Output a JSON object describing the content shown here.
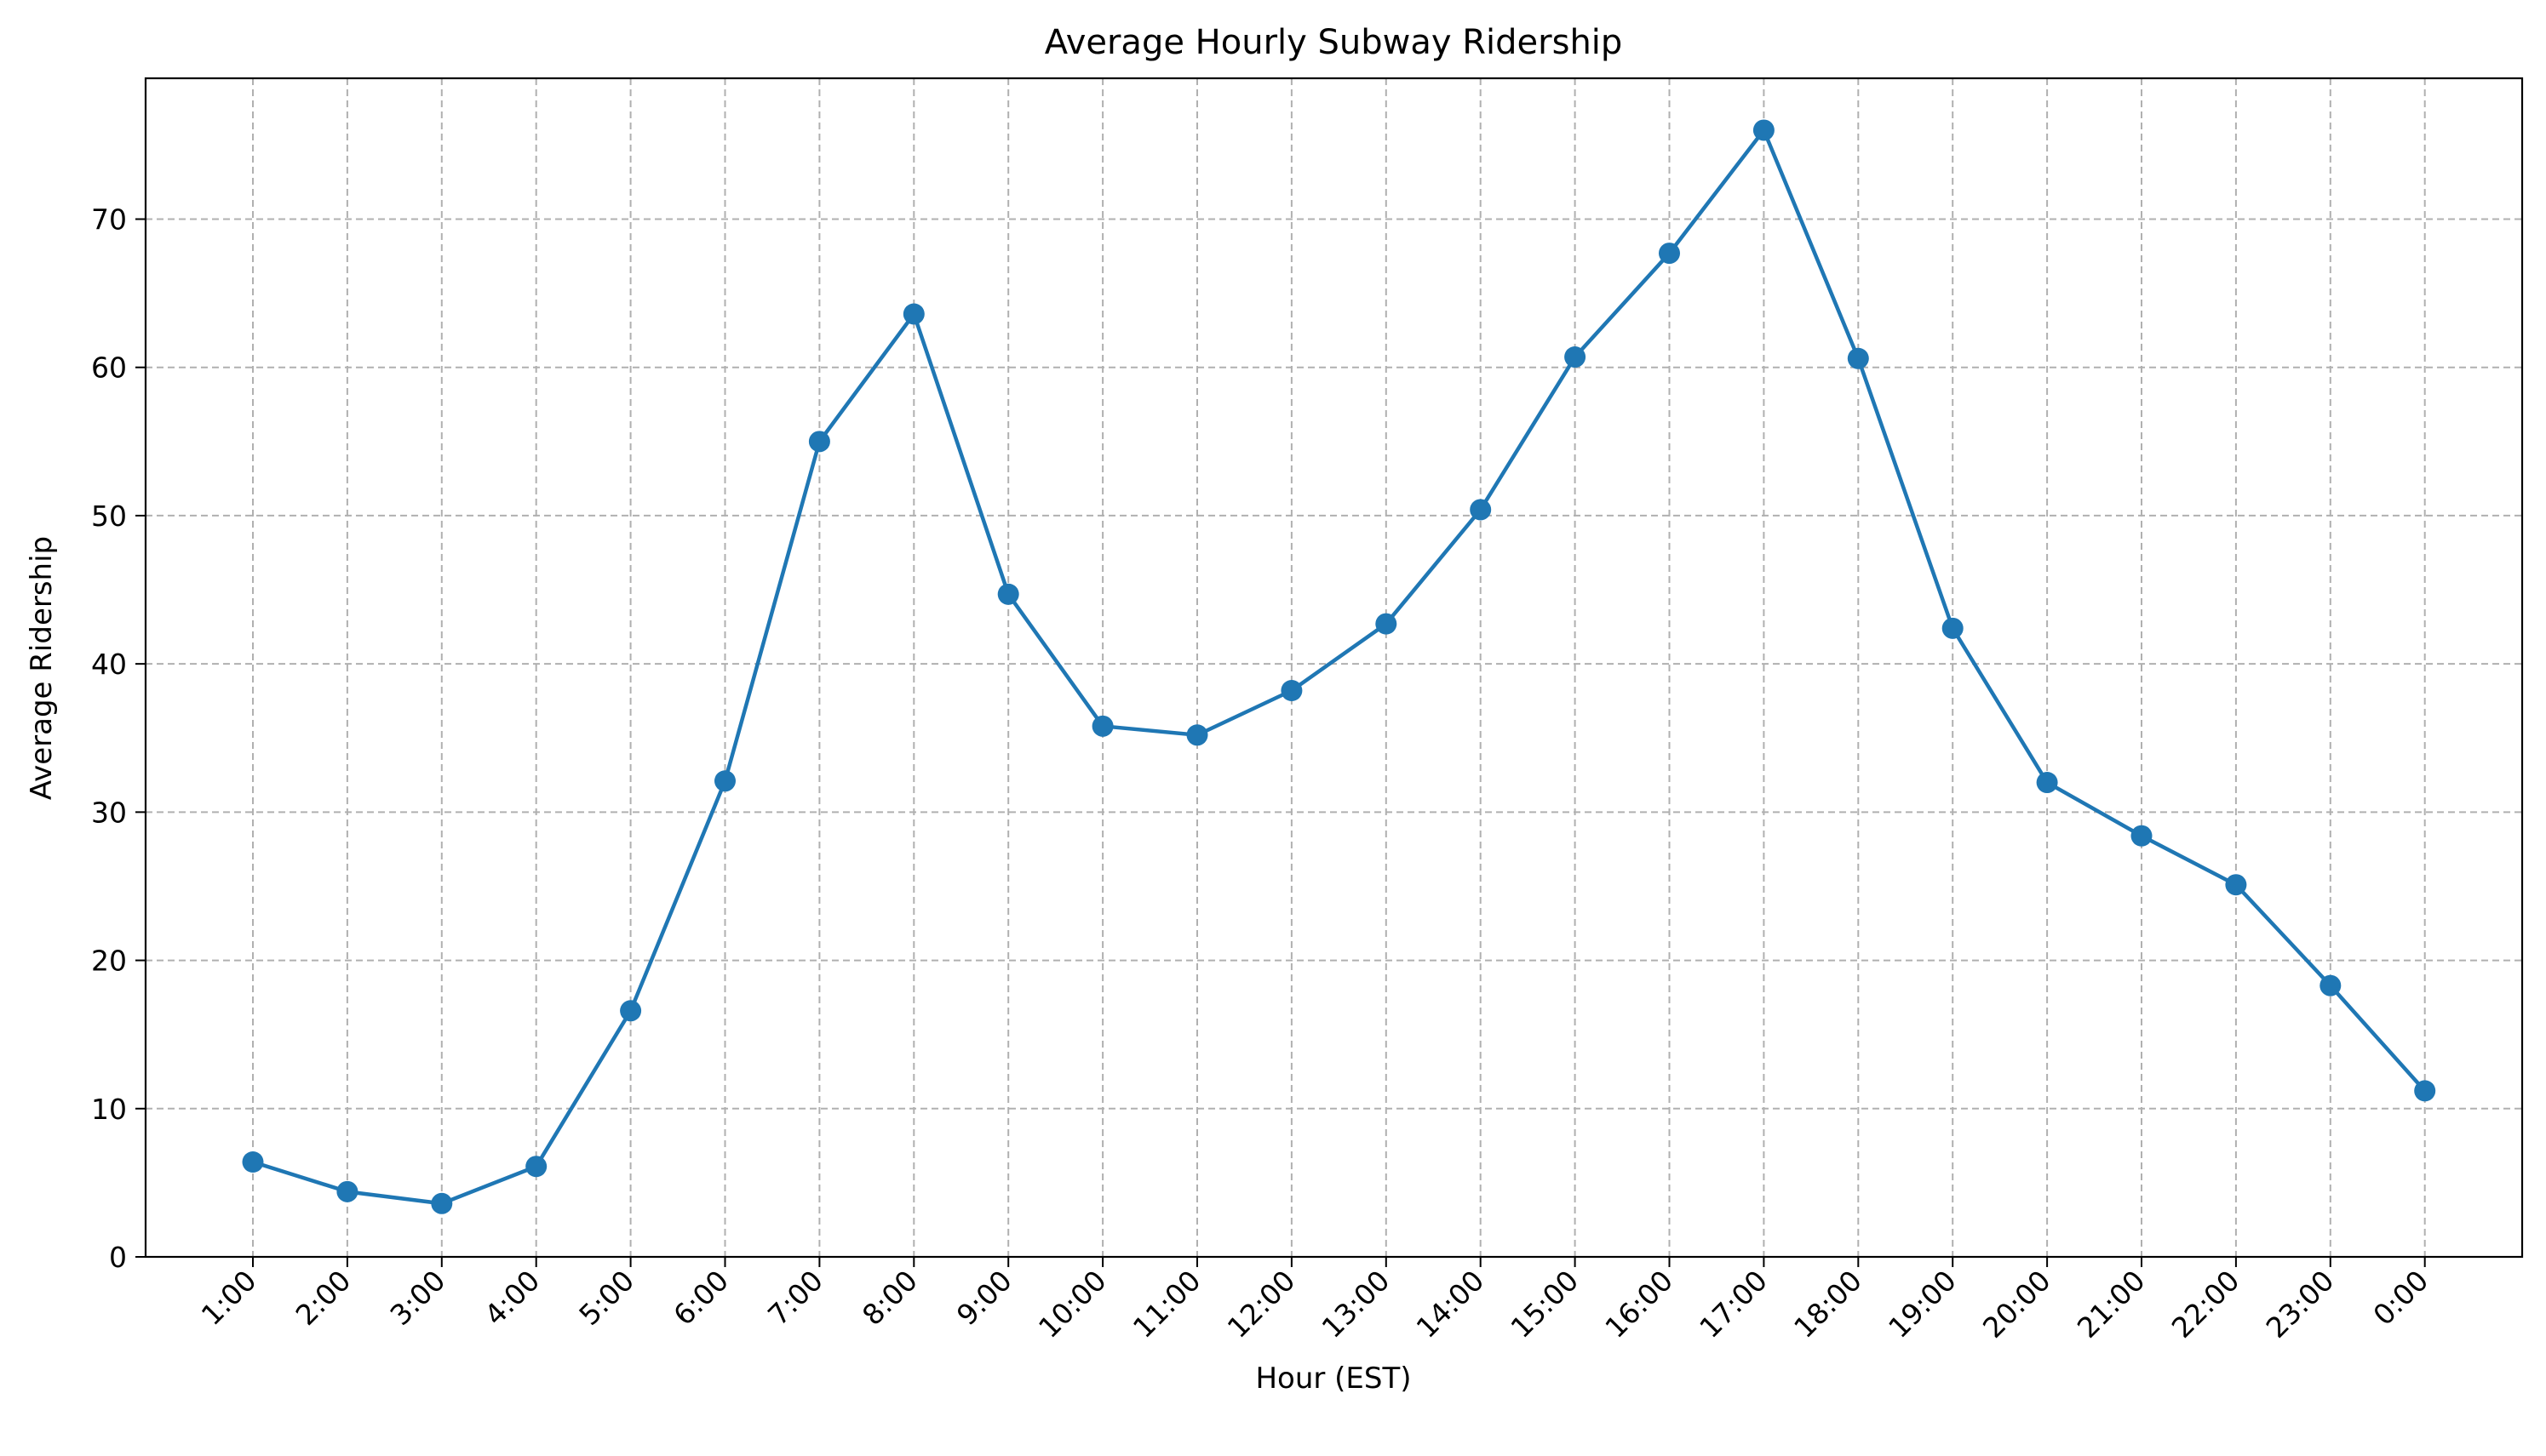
{
  "chart_data": {
    "type": "line",
    "title": "Average Hourly Subway Ridership",
    "xlabel": "Hour (EST)",
    "ylabel": "Average Ridership",
    "categories": [
      "1:00",
      "2:00",
      "3:00",
      "4:00",
      "5:00",
      "6:00",
      "7:00",
      "8:00",
      "9:00",
      "10:00",
      "11:00",
      "12:00",
      "13:00",
      "14:00",
      "15:00",
      "16:00",
      "17:00",
      "18:00",
      "19:00",
      "20:00",
      "21:00",
      "22:00",
      "23:00",
      "0:00"
    ],
    "series": [
      {
        "values": [
          6.4,
          4.4,
          3.6,
          6.1,
          16.6,
          32.1,
          55.0,
          63.6,
          44.7,
          35.8,
          35.2,
          38.2,
          42.7,
          50.4,
          60.7,
          67.7,
          76.0,
          60.6,
          42.4,
          32.0,
          28.4,
          25.1,
          18.3,
          11.2
        ],
        "color": "#1f77b4",
        "marker": "circle"
      }
    ],
    "ylim": [
      0,
      79.5
    ],
    "yticks": [
      0,
      10,
      20,
      30,
      40,
      50,
      60,
      70
    ],
    "grid": true,
    "grid_style": "dashed",
    "grid_color": "#b0b0b0",
    "legend": "none",
    "xtick_rotation": 45
  }
}
